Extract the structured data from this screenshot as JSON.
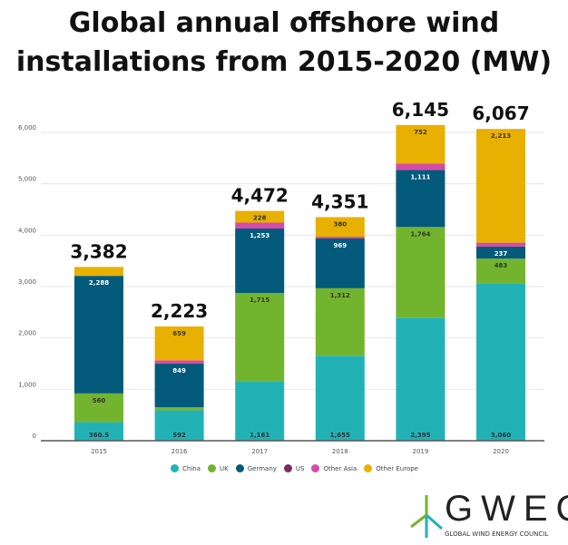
{
  "chart_data": {
    "type": "bar",
    "stacked": true,
    "title": "Global annual offshore wind installations from 2015-2020 (MW)",
    "categories": [
      "2015",
      "2016",
      "2017",
      "2018",
      "2019",
      "2020"
    ],
    "totals": [
      "3,382",
      "2,223",
      "4,472",
      "4,351",
      "6,145",
      "6,067"
    ],
    "ylim": [
      0,
      6000
    ],
    "yticks": [
      "0",
      "1,000",
      "2,000",
      "3,000",
      "4,000",
      "5,000",
      "6,000"
    ],
    "grid": true,
    "legend_position": "bottom",
    "series": [
      {
        "name": "China",
        "color": "#22b2b5",
        "values": [
          360.5,
          592,
          1161,
          1655,
          2395,
          3060
        ],
        "labels": [
          "360.5",
          "592",
          "1,161",
          "1,655",
          "2,395",
          "3,060"
        ]
      },
      {
        "name": "UK",
        "color": "#73b42f",
        "values": [
          560,
          60,
          1715,
          1312,
          1764,
          483
        ],
        "labels": [
          "560",
          "",
          "1,715",
          "1,312",
          "1,764",
          "483"
        ]
      },
      {
        "name": "Germany",
        "color": "#035a7a",
        "values": [
          2288,
          849,
          1253,
          969,
          1111,
          237
        ],
        "labels": [
          "2,288",
          "849",
          "1,253",
          "969",
          "1,111",
          "237"
        ]
      },
      {
        "name": "US",
        "color": "#7a2b63",
        "values": [
          0,
          0,
          0,
          0,
          0,
          0
        ],
        "labels": [
          "",
          "",
          "",
          "",
          "",
          ""
        ]
      },
      {
        "name": "Other Asia",
        "color": "#d64aa8",
        "values": [
          0,
          63,
          115,
          35,
          123,
          74
        ],
        "labels": [
          "",
          "",
          "",
          "",
          "",
          ""
        ]
      },
      {
        "name": "Other Europe",
        "color": "#e8b000",
        "values": [
          173.5,
          659,
          228,
          380,
          752,
          2213
        ],
        "labels": [
          "",
          "659",
          "228",
          "380",
          "752",
          "2,213"
        ]
      }
    ]
  },
  "logo": {
    "word": "GWEC",
    "subtitle": "GLOBAL WIND ENERGY COUNCIL"
  }
}
